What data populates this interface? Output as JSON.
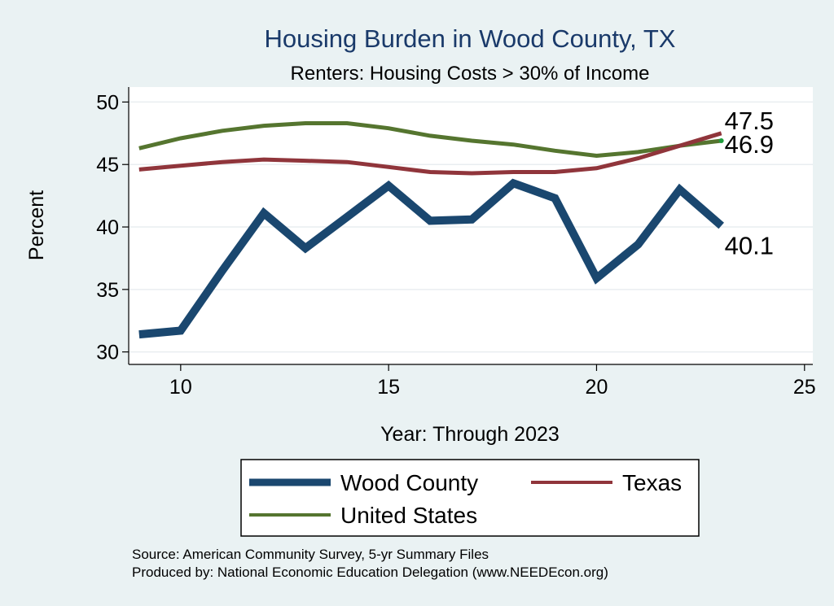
{
  "chart_data": {
    "type": "line",
    "title": "Housing Burden in Wood County, TX",
    "subtitle": "Renters: Housing Costs > 30% of Income",
    "xlabel": "Year: Through 2023",
    "ylabel": "Percent",
    "xlim": [
      8.75,
      25.2
    ],
    "ylim": [
      29,
      51.2
    ],
    "xticks": [
      10,
      15,
      20,
      25
    ],
    "yticks": [
      30,
      35,
      40,
      45,
      50
    ],
    "grid": true,
    "legend_position": "bottom",
    "series": [
      {
        "name": "Wood County",
        "color": "#1a476f",
        "x": [
          9,
          10,
          11,
          12,
          13,
          14,
          15,
          16,
          17,
          18,
          19,
          20,
          21,
          22,
          23
        ],
        "values": [
          31.4,
          31.7,
          36.5,
          41.1,
          38.3,
          40.8,
          43.3,
          40.5,
          40.6,
          43.5,
          42.3,
          35.9,
          38.6,
          43.0,
          40.1
        ],
        "end_label": "40.1"
      },
      {
        "name": "Texas",
        "color": "#90353b",
        "x": [
          9,
          10,
          11,
          12,
          13,
          14,
          15,
          16,
          17,
          18,
          19,
          20,
          21,
          22,
          23
        ],
        "values": [
          44.6,
          44.9,
          45.2,
          45.4,
          45.3,
          45.2,
          44.8,
          44.4,
          44.3,
          44.4,
          44.4,
          44.7,
          45.5,
          46.5,
          47.5
        ],
        "end_label": "47.5"
      },
      {
        "name": "United States",
        "color": "#55752f",
        "x": [
          9,
          10,
          11,
          12,
          13,
          14,
          15,
          16,
          17,
          18,
          19,
          20,
          21,
          22,
          23
        ],
        "values": [
          46.3,
          47.1,
          47.7,
          48.1,
          48.3,
          48.3,
          47.9,
          47.3,
          46.9,
          46.6,
          46.1,
          45.7,
          46.0,
          46.5,
          46.9
        ],
        "end_label": "46.9"
      }
    ]
  },
  "notes": {
    "source": "Source: American Community Survey, 5-yr Summary Files",
    "produced": "Produced by: National Economic Education Delegation (www.NEEDEcon.org)"
  }
}
